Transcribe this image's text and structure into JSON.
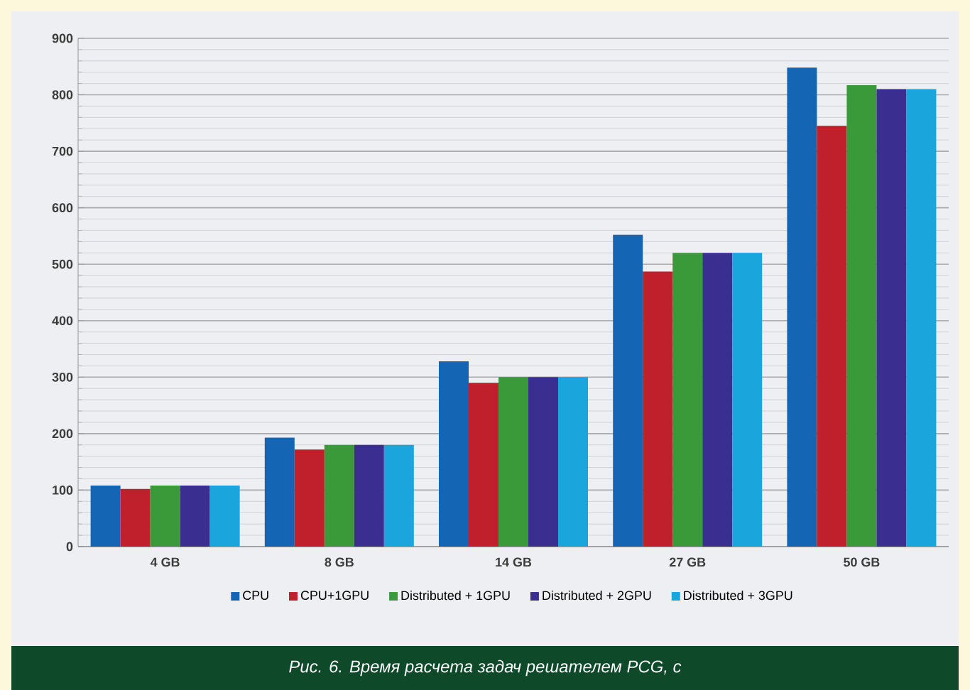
{
  "chart_data": {
    "type": "bar",
    "categories": [
      "4 GB",
      "8 GB",
      "14 GB",
      "27 GB",
      "50 GB"
    ],
    "series": [
      {
        "name": "CPU",
        "color": "#1565b5",
        "values": [
          108,
          193,
          328,
          552,
          848
        ]
      },
      {
        "name": "CPU+1GPU",
        "color": "#c0202c",
        "values": [
          102,
          172,
          290,
          487,
          745
        ]
      },
      {
        "name": "Distributed + 1GPU",
        "color": "#3a9a3a",
        "values": [
          108,
          180,
          300,
          520,
          817
        ]
      },
      {
        "name": "Distributed + 2GPU",
        "color": "#3a2f90",
        "values": [
          108,
          180,
          300,
          520,
          810
        ]
      },
      {
        "name": "Distributed + 3GPU",
        "color": "#1aa6dc",
        "values": [
          108,
          180,
          300,
          520,
          810
        ]
      }
    ],
    "ylim": [
      0,
      900
    ],
    "yticks": [
      0,
      100,
      200,
      300,
      400,
      500,
      600,
      700,
      800,
      900
    ],
    "grid": "y",
    "legend": "bottom",
    "annotations": [
      "Рис. 6. Время расчета задач решателем PCG, с"
    ]
  }
}
